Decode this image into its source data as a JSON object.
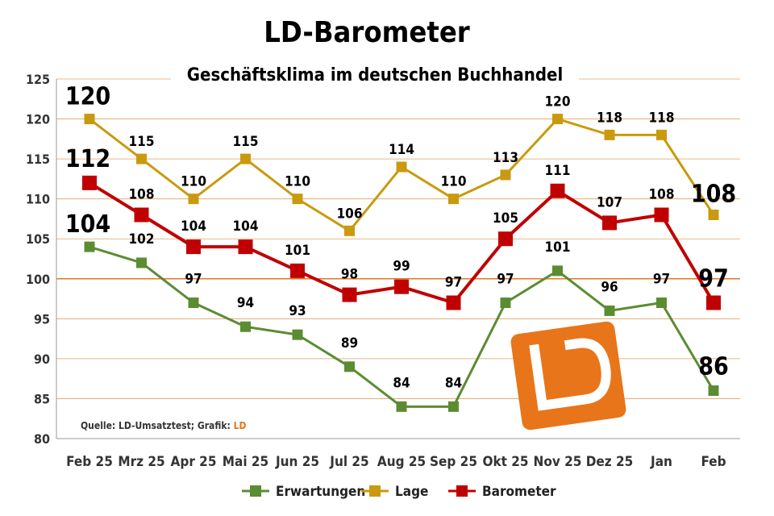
{
  "title": "LD-Barometer",
  "subtitle": "Geschäftsklima im deutschen Buchhandel",
  "source_prefix": "Quelle: LD-Umsatztest; Grafik: ",
  "source_brand": "LD",
  "logo_text": "LD",
  "colors": {
    "erwartungen": "#5B8C32",
    "lage": "#C99A0E",
    "barometer": "#C00000",
    "grid": "#E0A060",
    "baseline": "#E07820",
    "logo": "#E8751A"
  },
  "chart_data": {
    "type": "line",
    "title": "LD-Barometer",
    "subtitle": "Geschäftsklima im deutschen Buchhandel",
    "categories": [
      "Feb 25",
      "Mrz 25",
      "Apr 25",
      "Mai 25",
      "Jun 25",
      "Jul 25",
      "Aug 25",
      "Sep 25",
      "Okt 25",
      "Nov 25",
      "Dez 25",
      "Jan",
      "Feb"
    ],
    "ylim": [
      80,
      125
    ],
    "yticks": [
      80,
      85,
      90,
      95,
      100,
      105,
      110,
      115,
      120,
      125
    ],
    "reference_line": 100,
    "legend_position": "bottom",
    "series": [
      {
        "name": "Erwartungen",
        "key": "erwartungen",
        "values": [
          104,
          102,
          97,
          94,
          93,
          89,
          84,
          84,
          97,
          101,
          96,
          97,
          86
        ]
      },
      {
        "name": "Lage",
        "key": "lage",
        "values": [
          120,
          115,
          110,
          115,
          110,
          106,
          114,
          110,
          113,
          120,
          118,
          118,
          108
        ]
      },
      {
        "name": "Barometer",
        "key": "barometer",
        "values": [
          112,
          108,
          104,
          104,
          101,
          98,
          99,
          97,
          105,
          111,
          107,
          108,
          97
        ]
      }
    ]
  }
}
